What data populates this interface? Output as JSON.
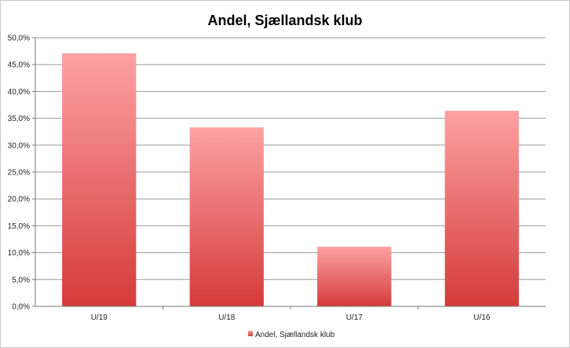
{
  "chart_data": {
    "type": "bar",
    "title": "Andel, Sjællandsk klub",
    "categories": [
      "U/19",
      "U/18",
      "U/17",
      "U/16"
    ],
    "series": [
      {
        "name": "Andel, Sjællandsk klub",
        "values": [
          47.1,
          33.3,
          11.1,
          36.4
        ]
      }
    ],
    "ylim": [
      0,
      50
    ],
    "yticks": [
      "0,0%",
      "5,0%",
      "10,0%",
      "15,0%",
      "20,0%",
      "25,0%",
      "30,0%",
      "35,0%",
      "40,0%",
      "45,0%",
      "50,0%"
    ],
    "grid": true,
    "legend_position": "bottom",
    "colors": {
      "bar_top": "#fda2a2",
      "bar_bottom": "#d63a3a",
      "grid": "#9a9a9a",
      "axis": "#777777"
    }
  }
}
